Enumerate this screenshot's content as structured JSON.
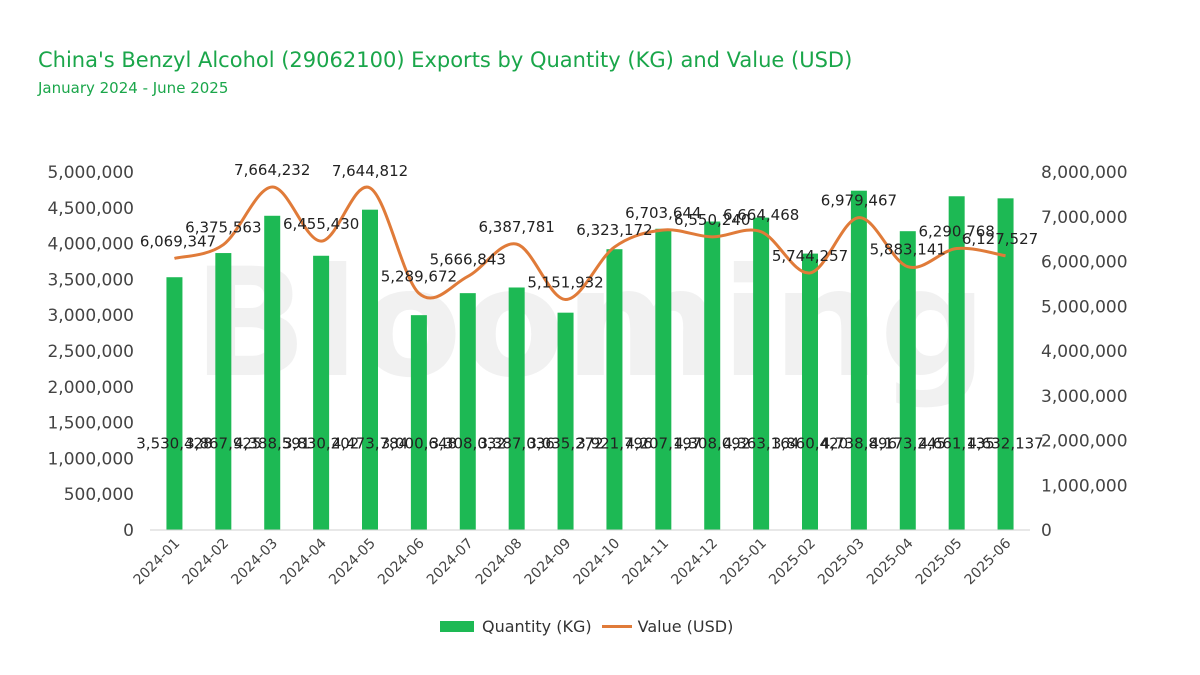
{
  "header": {
    "title": "China's Benzyl Alcohol (29062100) Exports by Quantity (KG) and Value (USD)",
    "subtitle": "January 2024 - June 2025"
  },
  "watermark": "Blooming",
  "colors": {
    "bar": "#1db954",
    "line": "#e07b39",
    "title": "#1aa64a"
  },
  "chart_data": {
    "type": "bar",
    "categories": [
      "2024-01",
      "2024-02",
      "2024-03",
      "2024-04",
      "2024-05",
      "2024-06",
      "2024-07",
      "2024-08",
      "2024-09",
      "2024-10",
      "2024-11",
      "2024-12",
      "2025-01",
      "2025-02",
      "2025-03",
      "2025-04",
      "2025-05",
      "2025-06"
    ],
    "series": [
      {
        "name": "Quantity (KG)",
        "type": "bar",
        "axis": "left",
        "values": [
          3530428,
          3867925,
          4388591,
          3830202,
          4473784,
          3000648,
          3308032,
          3387036,
          3035272,
          3921796,
          4207197,
          4308092,
          4363164,
          3860420,
          4738896,
          4173245,
          4661135,
          4632137
        ],
        "labels": [
          "3,530,428",
          "3,867,925",
          "4,388,591",
          "3,830,202",
          "4,473,784",
          "3,000,648",
          "3,308,032",
          "3,387,036",
          "3,035,272",
          "3,921,796",
          "4,207,197",
          "4,308,092",
          "4,363,164",
          "3,860,420",
          "4,738,896",
          "4,173,245",
          "4,661,135",
          "4,632,137"
        ]
      },
      {
        "name": "Value (USD)",
        "type": "line",
        "axis": "right",
        "values": [
          6069347,
          6375563,
          7664232,
          6455430,
          7644812,
          5289672,
          5666843,
          6387781,
          5151932,
          6323172,
          6703644,
          6550240,
          6664468,
          5744257,
          6979467,
          5883141,
          6290768,
          6127527
        ],
        "labels": [
          "6,069,347",
          "6,375,563",
          "7,664,232",
          "6,455,430",
          "7,644,812",
          "5,289,672",
          "5,666,843",
          "6,387,781",
          "5,151,932",
          "6,323,172",
          "6,703,644",
          "6,550,240",
          "6,664,468",
          "5,744,257",
          "6,979,467",
          "5,883,141",
          "6,290,768",
          "6,127,527"
        ]
      }
    ],
    "y_left": {
      "ylim": [
        0,
        5000000
      ],
      "ticks": [
        0,
        500000,
        1000000,
        1500000,
        2000000,
        2500000,
        3000000,
        3500000,
        4000000,
        4500000,
        5000000
      ],
      "tick_labels": [
        "0",
        "500,000",
        "1,000,000",
        "1,500,000",
        "2,000,000",
        "2,500,000",
        "3,000,000",
        "3,500,000",
        "4,000,000",
        "4,500,000",
        "5,000,000"
      ]
    },
    "y_right": {
      "ylim": [
        0,
        8000000
      ],
      "ticks": [
        0,
        1000000,
        2000000,
        3000000,
        4000000,
        5000000,
        6000000,
        7000000,
        8000000
      ],
      "tick_labels": [
        "0",
        "1,000,000",
        "2,000,000",
        "3,000,000",
        "4,000,000",
        "5,000,000",
        "6,000,000",
        "7,000,000",
        "8,000,000"
      ]
    },
    "legend_position": "bottom",
    "grid": false
  }
}
